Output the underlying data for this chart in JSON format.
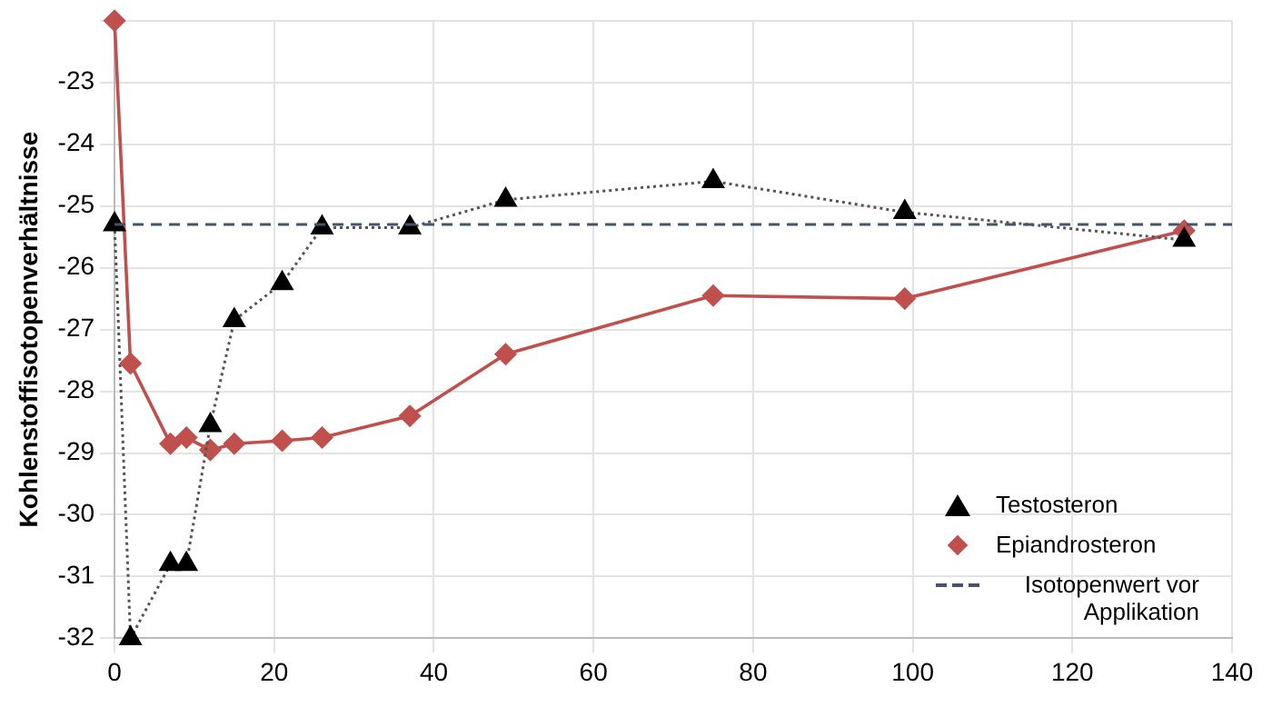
{
  "chart_data": {
    "type": "line",
    "ylabel": "Kohlenstoffisotopenverhältnisse",
    "xlim": [
      0,
      140
    ],
    "xticks": [
      0,
      20,
      40,
      60,
      80,
      100,
      120,
      140
    ],
    "ylim": [
      -32,
      -22
    ],
    "yticks": [
      -32,
      -31,
      -30,
      -29,
      -28,
      -27,
      -26,
      -25,
      -24,
      -23,
      {
        "value": -22,
        "label": null
      }
    ],
    "grid": true,
    "legend": "bottom right",
    "series": [
      {
        "name": "Testosteron",
        "color": "#000000",
        "marker": "triangle",
        "line_style": "dotted",
        "x": [
          0,
          2,
          7,
          9,
          12,
          15,
          21,
          26,
          37,
          49,
          75,
          99,
          134
        ],
        "values": [
          -25.3,
          -32,
          -30.8,
          -30.8,
          -28.55,
          -26.85,
          -26.25,
          -25.35,
          -25.35,
          -24.9,
          -24.6,
          -25.1,
          -25.55
        ]
      },
      {
        "name": "Epiandrosteron",
        "color": "#c0504d",
        "marker": "diamond",
        "line_style": "solid",
        "x": [
          0,
          2,
          7,
          9,
          12,
          15,
          21,
          26,
          37,
          49,
          75,
          99,
          134
        ],
        "values": [
          -22,
          -27.55,
          -28.85,
          -28.75,
          -28.95,
          -28.85,
          -28.8,
          -28.75,
          -28.4,
          -27.4,
          -26.45,
          -26.5,
          -25.4
        ]
      }
    ],
    "ref_lines": [
      {
        "axis": "y",
        "value": -25.3,
        "label": "Isotopenwert vor Applikation",
        "color": "#44546a",
        "line_style": "dashed"
      }
    ]
  }
}
